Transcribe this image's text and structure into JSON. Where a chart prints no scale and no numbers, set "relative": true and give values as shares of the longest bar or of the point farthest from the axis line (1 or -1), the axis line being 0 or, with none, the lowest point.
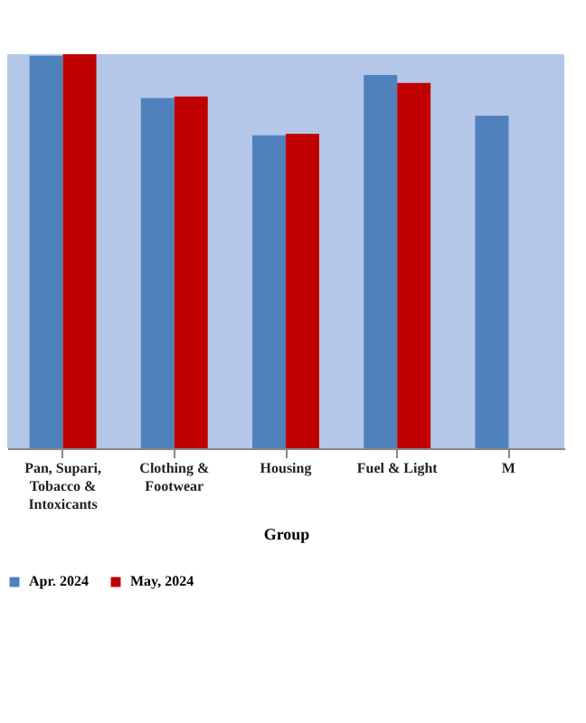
{
  "chart_data": {
    "type": "bar",
    "relative": true,
    "xlabel": "Group",
    "categories": [
      "Pan, Supari, Tobacco & Intoxicants",
      "Clothing & Footwear",
      "Housing",
      "Fuel & Light",
      "M"
    ],
    "series": [
      {
        "name": "Apr. 2024",
        "color": "#4f81bd",
        "values": [
          0.996,
          0.889,
          0.794,
          0.947,
          0.844
        ]
      },
      {
        "name": "May, 2024",
        "color": "#c00000",
        "values": [
          1,
          0.893,
          0.798,
          0.927,
          null
        ]
      }
    ],
    "legend": "bottom"
  }
}
